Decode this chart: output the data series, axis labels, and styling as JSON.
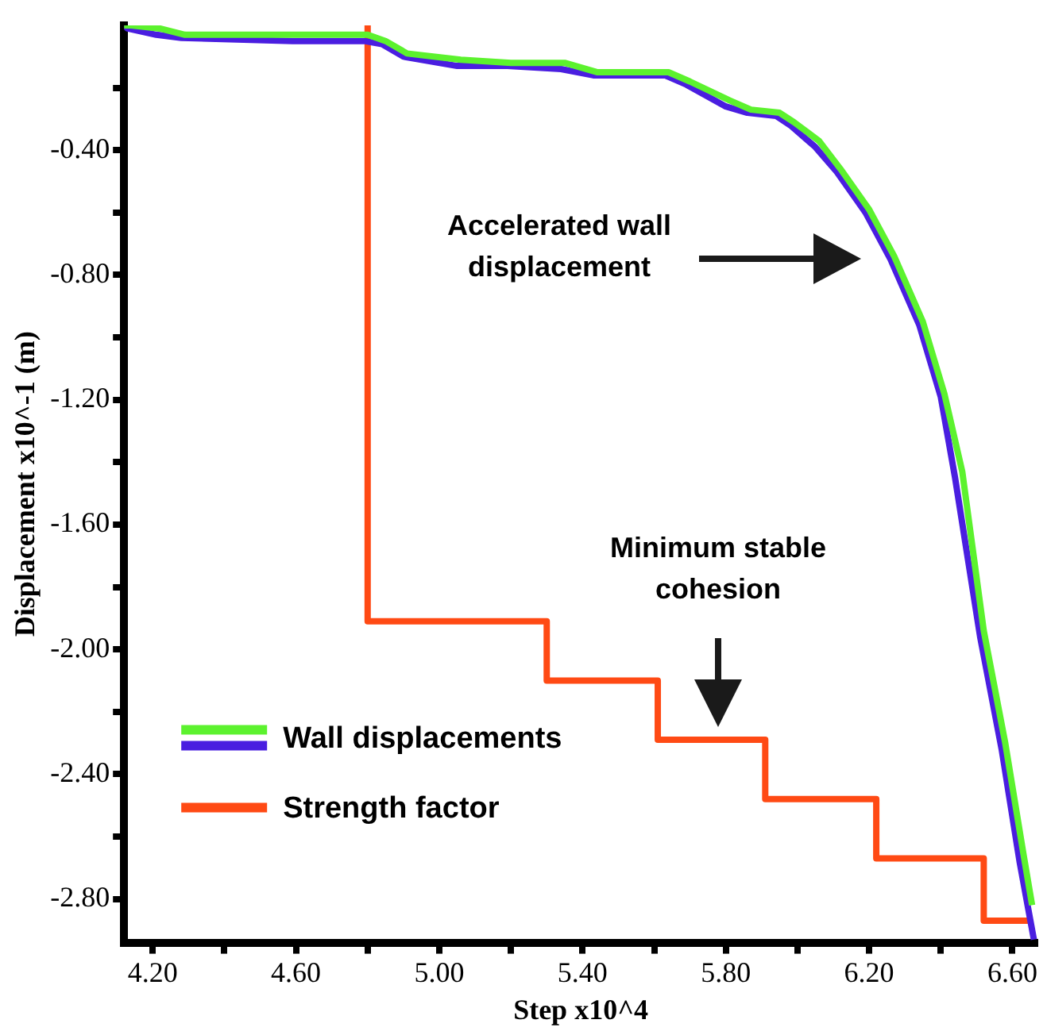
{
  "chart_data": {
    "type": "line",
    "xlabel": "Step x10^4",
    "ylabel": "Displacement x10^-1 (m)",
    "xlim": [
      4.12,
      6.67
    ],
    "ylim": [
      -2.94,
      0
    ],
    "xticks": [
      {
        "value": 4.2,
        "label": "4.20"
      },
      {
        "value": 4.4,
        "label": null
      },
      {
        "value": 4.6,
        "label": "4.60"
      },
      {
        "value": 4.8,
        "label": null
      },
      {
        "value": 5.0,
        "label": "5.00"
      },
      {
        "value": 5.2,
        "label": null
      },
      {
        "value": 5.4,
        "label": "5.40"
      },
      {
        "value": 5.6,
        "label": null
      },
      {
        "value": 5.8,
        "label": "5.80"
      },
      {
        "value": 6.0,
        "label": null
      },
      {
        "value": 6.2,
        "label": "6.20"
      },
      {
        "value": 6.4,
        "label": null
      },
      {
        "value": 6.6,
        "label": "6.60"
      }
    ],
    "yticks": [
      {
        "value": -0.2,
        "label": null
      },
      {
        "value": -0.4,
        "label": "-0.40"
      },
      {
        "value": -0.6,
        "label": null
      },
      {
        "value": -0.8,
        "label": "-0.80"
      },
      {
        "value": -1.0,
        "label": null
      },
      {
        "value": -1.2,
        "label": "-1.20"
      },
      {
        "value": -1.4,
        "label": null
      },
      {
        "value": -1.6,
        "label": "-1.60"
      },
      {
        "value": -1.8,
        "label": null
      },
      {
        "value": -2.0,
        "label": "-2.00"
      },
      {
        "value": -2.2,
        "label": null
      },
      {
        "value": -2.4,
        "label": "-2.40"
      },
      {
        "value": -2.6,
        "label": null
      },
      {
        "value": -2.8,
        "label": "-2.80"
      }
    ],
    "series": [
      {
        "name": "Wall displacements",
        "color": "#5cf22e",
        "x": [
          4.12,
          4.14,
          4.22,
          4.29,
          4.6,
          4.8,
          4.85,
          4.91,
          5.06,
          5.2,
          5.35,
          5.44,
          5.64,
          5.7,
          5.81,
          5.87,
          5.95,
          5.99,
          6.06,
          6.12,
          6.2,
          6.27,
          6.35,
          6.41,
          6.46,
          6.52,
          6.58,
          6.63,
          6.655
        ],
        "values": [
          0,
          -0.0,
          -0.01,
          -0.03,
          -0.03,
          -0.03,
          -0.05,
          -0.09,
          -0.11,
          -0.12,
          -0.12,
          -0.15,
          -0.15,
          -0.18,
          -0.24,
          -0.27,
          -0.28,
          -0.31,
          -0.37,
          -0.46,
          -0.59,
          -0.74,
          -0.95,
          -1.18,
          -1.43,
          -1.94,
          -2.3,
          -2.65,
          -2.82
        ]
      },
      {
        "color": "#4a1ee0",
        "x": [
          4.12,
          4.13,
          4.21,
          4.28,
          4.59,
          4.79,
          4.84,
          4.9,
          5.05,
          5.19,
          5.34,
          5.43,
          5.63,
          5.69,
          5.8,
          5.86,
          5.94,
          5.98,
          6.05,
          6.11,
          6.19,
          6.26,
          6.34,
          6.4,
          6.44,
          6.51,
          6.57,
          6.62,
          6.66
        ],
        "values": [
          0,
          -0.01,
          -0.03,
          -0.04,
          -0.05,
          -0.05,
          -0.06,
          -0.1,
          -0.13,
          -0.13,
          -0.14,
          -0.16,
          -0.16,
          -0.19,
          -0.26,
          -0.28,
          -0.29,
          -0.32,
          -0.39,
          -0.47,
          -0.6,
          -0.75,
          -0.96,
          -1.19,
          -1.45,
          -1.96,
          -2.32,
          -2.68,
          -2.93
        ]
      },
      {
        "name": "Strength factor",
        "color": "#ff4a14",
        "x": [
          4.8,
          4.8,
          5.3,
          5.3,
          5.61,
          5.61,
          5.91,
          5.91,
          6.22,
          6.22,
          6.52,
          6.52,
          6.655
        ],
        "values": [
          0,
          -1.91,
          -1.91,
          -2.1,
          -2.1,
          -2.29,
          -2.29,
          -2.48,
          -2.48,
          -2.67,
          -2.67,
          -2.87,
          -2.87
        ]
      }
    ],
    "legend": "bottom left",
    "annotations": [
      "Accelerated wall displacement",
      "Minimum stable cohesion"
    ]
  }
}
